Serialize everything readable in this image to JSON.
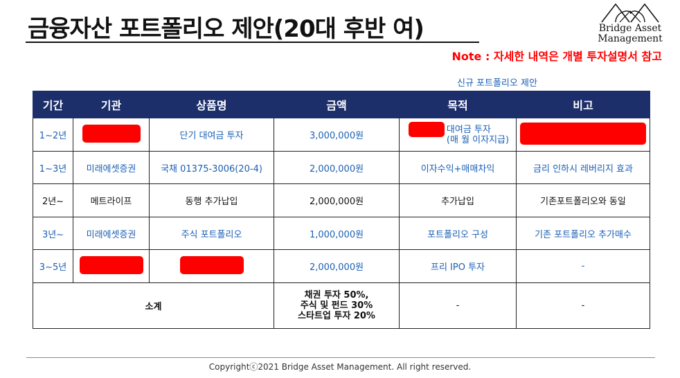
{
  "header": {
    "title": "금융자산 포트폴리오 제안(20대 후반 여)",
    "logo_line1": "Bridge Asset",
    "logo_line2": "Management",
    "note": "Note : 자세한 내역은 개별 투자설명서 참고",
    "note_color": "#ff0000"
  },
  "table": {
    "caption": "신규 포트폴리오 제안",
    "headers": [
      "기간",
      "기관",
      "상품명",
      "금액",
      "목적",
      "비고"
    ],
    "header_bg": "#1d2f6b",
    "rows": [
      {
        "period": "1~2년",
        "institution": "",
        "product": "단기 대여금 투자",
        "amount": "3,000,000원",
        "purpose_line1": "대여금 투자",
        "purpose_line2": "(매 월 이자지급)",
        "remark": ""
      },
      {
        "period": "1~3년",
        "institution": "미래에셋증권",
        "product": "국채 01375-3006(20-4)",
        "amount": "2,000,000원",
        "purpose": "이자수익+매매차익",
        "remark": "금리 인하시 레버리지 효과"
      },
      {
        "period": "2년~",
        "institution": "메트라이프",
        "product": "동행 추가납입",
        "amount": "2,000,000원",
        "purpose": "추가납입",
        "remark": "기존포트폴리오와 동일"
      },
      {
        "period": "3년~",
        "institution": "미래에셋증권",
        "product": "주식 포트폴리오",
        "amount": "1,000,000원",
        "purpose": "포트폴리오 구성",
        "remark": "기존 포트폴리오 추가매수"
      },
      {
        "period": "3~5년",
        "institution": "",
        "product": "",
        "amount": "2,000,000원",
        "purpose": "프리 IPO 투자",
        "remark": "-"
      }
    ],
    "subtotal": {
      "label": "소계",
      "allocation": [
        "채권 투자 50%,",
        "주식 및 펀드 30%",
        "스타트업 투자 20%"
      ],
      "purpose": "-",
      "remark": "-"
    },
    "redaction_color": "#ff0000"
  },
  "footer": {
    "copyright": "Copyrightⓒ2021 Bridge Asset Management. All right reserved."
  }
}
